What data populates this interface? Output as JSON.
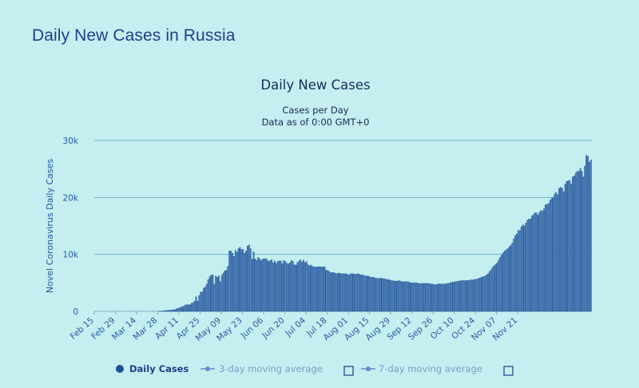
{
  "page": {
    "title": "Daily New Cases in Russia"
  },
  "chart_data": {
    "type": "bar",
    "title": "Daily New Cases",
    "subtitle_lines": [
      "Cases per Day",
      "Data as of 0:00 GMT+0"
    ],
    "ylabel": "Novel Coronavirus Daily Cases",
    "ylim": [
      0,
      30000
    ],
    "yticks": [
      0,
      10000,
      20000,
      30000
    ],
    "ytick_labels": [
      "0",
      "10k",
      "20k",
      "30k"
    ],
    "x_start_date": "2020-02-15",
    "xtick_labels": [
      "Feb 15",
      "Feb 29",
      "Mar 14",
      "Mar 28",
      "Apr 11",
      "Apr 25",
      "May 09",
      "May 23",
      "Jun 06",
      "Jun 20",
      "Jul 04",
      "Jul 18",
      "Aug 01",
      "Aug 15",
      "Aug 29",
      "Sep 12",
      "Sep 26",
      "Oct 10",
      "Oct 24",
      "Nov 07",
      "Nov 21"
    ],
    "grid": true,
    "series": [
      {
        "name": "Daily Cases",
        "color": "#1d4f93",
        "values": [
          0,
          0,
          0,
          0,
          0,
          0,
          0,
          0,
          0,
          0,
          0,
          0,
          0,
          0,
          0,
          0,
          0,
          0,
          0,
          0,
          0,
          0,
          0,
          0,
          0,
          0,
          0,
          0,
          0,
          0,
          0,
          0,
          0,
          0,
          0,
          0,
          0,
          0,
          0,
          0,
          0,
          0,
          10,
          20,
          30,
          60,
          90,
          120,
          160,
          170,
          190,
          240,
          270,
          300,
          440,
          500,
          600,
          770,
          770,
          950,
          1150,
          1150,
          1150,
          1170,
          1450,
          1500,
          1770,
          2560,
          1790,
          2770,
          3390,
          3390,
          4070,
          4270,
          4790,
          5580,
          6060,
          6360,
          6410,
          4770,
          6200,
          5970,
          6200,
          5240,
          6340,
          6720,
          7100,
          7230,
          7930,
          10630,
          10580,
          10220,
          9620,
          10700,
          10390,
          11010,
          11230,
          10820,
          10900,
          10200,
          10600,
          11470,
          11660,
          11010,
          9130,
          10470,
          9200,
          8960,
          9440,
          9260,
          8920,
          9200,
          9200,
          9260,
          9060,
          8710,
          8930,
          9050,
          8510,
          8830,
          8420,
          8780,
          8830,
          8830,
          8360,
          8920,
          8760,
          8440,
          8330,
          8550,
          8910,
          8760,
          8170,
          8120,
          8590,
          8830,
          9030,
          8650,
          8990,
          8560,
          8700,
          8200,
          7980,
          8130,
          7880,
          7800,
          7800,
          7800,
          7840,
          7800,
          7800,
          7800,
          7800,
          7200,
          7200,
          7000,
          6800,
          6800,
          6800,
          6700,
          6600,
          6700,
          6700,
          6600,
          6600,
          6600,
          6600,
          6500,
          6400,
          6600,
          6600,
          6600,
          6500,
          6500,
          6600,
          6500,
          6400,
          6400,
          6300,
          6200,
          6200,
          6200,
          6000,
          6000,
          6000,
          5900,
          5800,
          5800,
          5800,
          5800,
          5800,
          5700,
          5700,
          5600,
          5600,
          5500,
          5400,
          5400,
          5300,
          5300,
          5300,
          5400,
          5300,
          5200,
          5200,
          5200,
          5200,
          5200,
          5100,
          5000,
          5000,
          5000,
          5000,
          5000,
          4900,
          4900,
          4900,
          4900,
          4900,
          4900,
          4900,
          4900,
          4800,
          4800,
          4700,
          4700,
          4700,
          4800,
          4800,
          4800,
          4800,
          4800,
          4800,
          4900,
          4900,
          5000,
          5100,
          5100,
          5200,
          5200,
          5300,
          5300,
          5400,
          5400,
          5400,
          5400,
          5400,
          5400,
          5500,
          5500,
          5500,
          5600,
          5600,
          5700,
          5800,
          5900,
          6000,
          6100,
          6200,
          6400,
          6600,
          7000,
          7300,
          7700,
          8000,
          8200,
          8500,
          9000,
          9500,
          9900,
          10300,
          10600,
          10800,
          11000,
          11300,
          11600,
          12000,
          12700,
          13300,
          13600,
          14200,
          14200,
          14800,
          15200,
          15000,
          15500,
          16000,
          16200,
          16200,
          16700,
          17000,
          17300,
          17300,
          16900,
          17400,
          17700,
          17600,
          18000,
          18700,
          18800,
          18900,
          19500,
          19800,
          20000,
          20600,
          20900,
          20500,
          21600,
          21800,
          21600,
          21000,
          22300,
          22800,
          22900,
          23000,
          22400,
          23600,
          23800,
          24300,
          24600,
          24600,
          25100,
          24600,
          23600,
          25500,
          27400,
          27200,
          26200,
          26600
        ]
      },
      {
        "name": "3-day moving average",
        "color": "#4a86c4"
      },
      {
        "name": "7-day moving average",
        "color": "#4a86c4"
      }
    ],
    "legend_position": "bottom-center"
  }
}
